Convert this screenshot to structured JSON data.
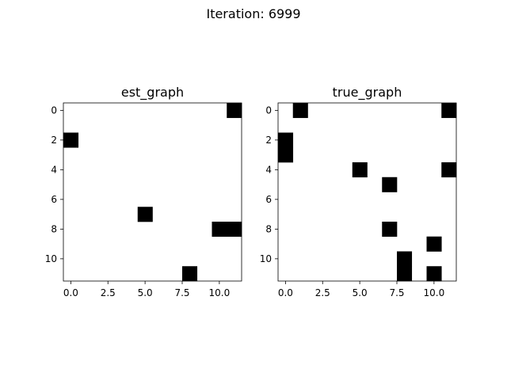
{
  "figure": {
    "suptitle": "Iteration: 6999"
  },
  "chart_data": [
    {
      "type": "heatmap",
      "title": "est_graph",
      "xlabel": "",
      "ylabel": "",
      "rows": 12,
      "cols": 12,
      "xlim": [
        -0.5,
        11.5
      ],
      "ylim": [
        11.5,
        -0.5
      ],
      "xticks": [
        0.0,
        2.5,
        5.0,
        7.5,
        10.0
      ],
      "xtick_labels": [
        "0.0",
        "2.5",
        "5.0",
        "7.5",
        "10.0"
      ],
      "yticks": [
        0,
        2,
        4,
        6,
        8,
        10
      ],
      "ytick_labels": [
        "0",
        "2",
        "4",
        "6",
        "8",
        "10"
      ],
      "colormap": "binary",
      "filled_cells": [
        [
          0,
          11
        ],
        [
          2,
          0
        ],
        [
          7,
          5
        ],
        [
          8,
          10
        ],
        [
          8,
          11
        ],
        [
          11,
          8
        ]
      ]
    },
    {
      "type": "heatmap",
      "title": "true_graph",
      "xlabel": "",
      "ylabel": "",
      "rows": 12,
      "cols": 12,
      "xlim": [
        -0.5,
        11.5
      ],
      "ylim": [
        11.5,
        -0.5
      ],
      "xticks": [
        0.0,
        2.5,
        5.0,
        7.5,
        10.0
      ],
      "xtick_labels": [
        "0.0",
        "2.5",
        "5.0",
        "7.5",
        "10.0"
      ],
      "yticks": [
        0,
        2,
        4,
        6,
        8,
        10
      ],
      "ytick_labels": [
        "0",
        "2",
        "4",
        "6",
        "8",
        "10"
      ],
      "colormap": "binary",
      "filled_cells": [
        [
          0,
          1
        ],
        [
          0,
          11
        ],
        [
          2,
          0
        ],
        [
          3,
          0
        ],
        [
          4,
          5
        ],
        [
          4,
          11
        ],
        [
          5,
          7
        ],
        [
          8,
          7
        ],
        [
          9,
          10
        ],
        [
          10,
          8
        ],
        [
          11,
          8
        ],
        [
          11,
          10
        ]
      ]
    }
  ]
}
